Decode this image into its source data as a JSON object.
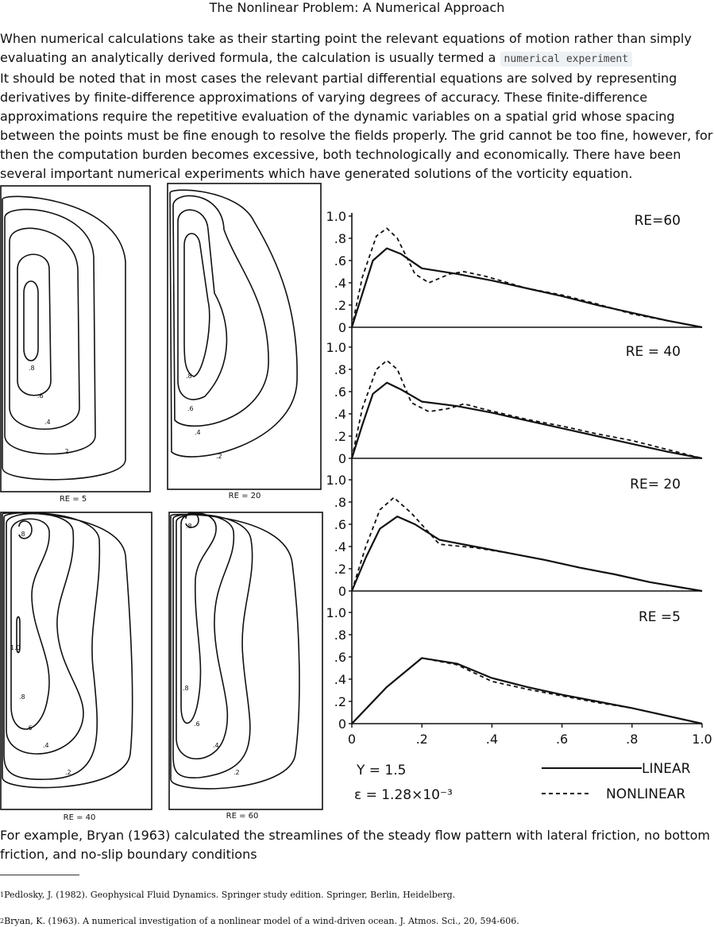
{
  "heading": "The Nonlinear Problem: A Numerical Approach",
  "para1_text": "When numerical calculations take as their starting point the relevant equations of motion rather than simply evaluating an analytically derived formula, the calculation is usually termed a",
  "para1_code": "numerical experiment",
  "para1_cont": "It should be noted that in most cases the relevant partial differential equations are solved by representing derivatives by finite-difference approximations of varying degrees of accuracy. These finite-difference approximations require the repetitive evaluation of the dynamic variables on a spatial grid whose spacing between the points must be fine enough to resolve the fields properly. The grid cannot be too fine, however, for then the computation burden becomes excessive, both technologically and economically. There have been several important numerical experiments which have generated solutions of the vorticity equation.",
  "streamline_panels": {
    "re5": "RE = 5",
    "re20": "RE = 20",
    "re40": "RE = 40",
    "re60": "RE = 60",
    "contour_labels": [
      ".2",
      ".4",
      ".6",
      ".8",
      "1.0"
    ]
  },
  "legend": {
    "y_label": "Y = 1.5",
    "eps_label": "ε = 1.28×10⁻³",
    "linear": "LINEAR",
    "nonlinear": "NONLINEAR"
  },
  "chart_data": {
    "type": "line",
    "xlabel": "",
    "ylabel": "",
    "x_ticks": [
      "0",
      ".2",
      ".4",
      ".6",
      ".8",
      "1.0"
    ],
    "y_ticks": [
      "0",
      ".2",
      ".4",
      ".6",
      ".8",
      "1.0"
    ],
    "xlim": [
      0,
      1.0
    ],
    "ylim": [
      0,
      1.0
    ],
    "panels": [
      {
        "label": "RE=60",
        "linear": [
          [
            0,
            0
          ],
          [
            0.03,
            0.3
          ],
          [
            0.06,
            0.6
          ],
          [
            0.1,
            0.71
          ],
          [
            0.14,
            0.66
          ],
          [
            0.2,
            0.53
          ],
          [
            0.3,
            0.48
          ],
          [
            0.4,
            0.42
          ],
          [
            0.5,
            0.35
          ],
          [
            0.6,
            0.28
          ],
          [
            0.7,
            0.2
          ],
          [
            0.8,
            0.13
          ],
          [
            0.9,
            0.06
          ],
          [
            1.0,
            0
          ]
        ],
        "nonlinear": [
          [
            0,
            0
          ],
          [
            0.03,
            0.45
          ],
          [
            0.07,
            0.82
          ],
          [
            0.1,
            0.89
          ],
          [
            0.13,
            0.8
          ],
          [
            0.18,
            0.48
          ],
          [
            0.22,
            0.4
          ],
          [
            0.28,
            0.48
          ],
          [
            0.32,
            0.5
          ],
          [
            0.38,
            0.46
          ],
          [
            0.5,
            0.35
          ],
          [
            0.6,
            0.29
          ],
          [
            0.7,
            0.21
          ],
          [
            0.8,
            0.12
          ],
          [
            0.9,
            0.06
          ],
          [
            1.0,
            0
          ]
        ]
      },
      {
        "label": "RE = 40",
        "linear": [
          [
            0,
            0
          ],
          [
            0.03,
            0.3
          ],
          [
            0.06,
            0.58
          ],
          [
            0.1,
            0.68
          ],
          [
            0.14,
            0.62
          ],
          [
            0.2,
            0.51
          ],
          [
            0.3,
            0.47
          ],
          [
            0.4,
            0.41
          ],
          [
            0.5,
            0.34
          ],
          [
            0.6,
            0.27
          ],
          [
            0.7,
            0.2
          ],
          [
            0.8,
            0.13
          ],
          [
            0.9,
            0.06
          ],
          [
            1.0,
            0
          ]
        ],
        "nonlinear": [
          [
            0,
            0
          ],
          [
            0.03,
            0.45
          ],
          [
            0.07,
            0.8
          ],
          [
            0.1,
            0.88
          ],
          [
            0.13,
            0.8
          ],
          [
            0.17,
            0.5
          ],
          [
            0.22,
            0.42
          ],
          [
            0.28,
            0.45
          ],
          [
            0.32,
            0.49
          ],
          [
            0.38,
            0.44
          ],
          [
            0.5,
            0.35
          ],
          [
            0.6,
            0.29
          ],
          [
            0.7,
            0.22
          ],
          [
            0.8,
            0.16
          ],
          [
            0.9,
            0.08
          ],
          [
            1.0,
            0
          ]
        ]
      },
      {
        "label": "RE= 20",
        "linear": [
          [
            0,
            0
          ],
          [
            0.04,
            0.3
          ],
          [
            0.08,
            0.56
          ],
          [
            0.13,
            0.67
          ],
          [
            0.18,
            0.6
          ],
          [
            0.25,
            0.46
          ],
          [
            0.35,
            0.4
          ],
          [
            0.45,
            0.34
          ],
          [
            0.55,
            0.28
          ],
          [
            0.65,
            0.21
          ],
          [
            0.75,
            0.15
          ],
          [
            0.85,
            0.08
          ],
          [
            1.0,
            0
          ]
        ],
        "nonlinear": [
          [
            0,
            0
          ],
          [
            0.04,
            0.4
          ],
          [
            0.08,
            0.73
          ],
          [
            0.12,
            0.84
          ],
          [
            0.17,
            0.7
          ],
          [
            0.25,
            0.42
          ],
          [
            0.35,
            0.39
          ],
          [
            0.45,
            0.34
          ],
          [
            0.55,
            0.28
          ],
          [
            0.65,
            0.21
          ],
          [
            0.75,
            0.15
          ],
          [
            0.85,
            0.08
          ],
          [
            1.0,
            0
          ]
        ]
      },
      {
        "label": "RE =5",
        "linear": [
          [
            0,
            0
          ],
          [
            0.1,
            0.33
          ],
          [
            0.2,
            0.59
          ],
          [
            0.3,
            0.54
          ],
          [
            0.4,
            0.41
          ],
          [
            0.5,
            0.33
          ],
          [
            0.6,
            0.26
          ],
          [
            0.7,
            0.2
          ],
          [
            0.8,
            0.14
          ],
          [
            0.9,
            0.07
          ],
          [
            1.0,
            0
          ]
        ],
        "nonlinear": [
          [
            0,
            0
          ],
          [
            0.1,
            0.33
          ],
          [
            0.2,
            0.59
          ],
          [
            0.3,
            0.53
          ],
          [
            0.4,
            0.38
          ],
          [
            0.5,
            0.31
          ],
          [
            0.6,
            0.25
          ],
          [
            0.7,
            0.19
          ],
          [
            0.8,
            0.14
          ],
          [
            0.9,
            0.07
          ],
          [
            1.0,
            0
          ]
        ]
      }
    ]
  },
  "para2": "For example, Bryan (1963) calculated the streamlines of the steady flow pattern with lateral friction, no bottom friction, and no-slip boundary conditions",
  "footnote1_num": "1",
  "footnote1": "Pedlosky, J. (1982). Geophysical Fluid Dynamics. Springer study edition. Springer, Berlin, Heidelberg.",
  "footnote2_num": "2",
  "footnote2": "Bryan, K. (1963). A numerical investigation of a nonlinear model of a wind-driven ocean. J. Atmos. Sci., 20, 594-606."
}
